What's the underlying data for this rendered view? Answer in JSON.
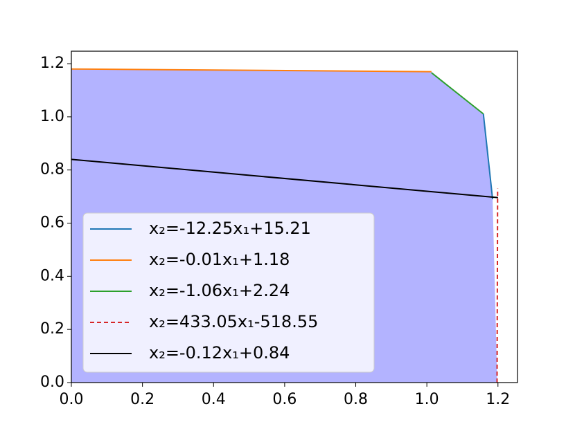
{
  "chart_data": {
    "type": "line",
    "xlim": [
      0,
      1.255
    ],
    "ylim": [
      0,
      1.247
    ],
    "xticks": [
      {
        "value": 0,
        "label": "0.0"
      },
      {
        "value": 0.2,
        "label": "0.2"
      },
      {
        "value": 0.4,
        "label": "0.4"
      },
      {
        "value": 0.6,
        "label": "0.6"
      },
      {
        "value": 0.8,
        "label": "0.8"
      },
      {
        "value": 1.0,
        "label": "1.0"
      },
      {
        "value": 1.2,
        "label": "1.2"
      }
    ],
    "yticks": [
      {
        "value": 0,
        "label": "0.0"
      },
      {
        "value": 0.2,
        "label": "0.2"
      },
      {
        "value": 0.4,
        "label": "0.4"
      },
      {
        "value": 0.6,
        "label": "0.6"
      },
      {
        "value": 0.8,
        "label": "0.8"
      },
      {
        "value": 1.0,
        "label": "1.0"
      },
      {
        "value": 1.2,
        "label": "1.2"
      }
    ],
    "fill": {
      "color": "#b3b3ff",
      "x": [
        0,
        0,
        1.013,
        1.159,
        1.185,
        1.198
      ],
      "y": [
        0,
        1.18,
        1.17,
        1.011,
        0.69,
        0
      ]
    },
    "legend": "lower left",
    "series": [
      {
        "name": "x₂=-12.25x₁+15.21",
        "color": "#1f77b4",
        "style": "solid",
        "x": [
          1.159,
          1.185
        ],
        "y": [
          1.011,
          0.69
        ]
      },
      {
        "name": "x₂=-0.01x₁+1.18",
        "color": "#ff7f0e",
        "style": "solid",
        "x": [
          0,
          1.013
        ],
        "y": [
          1.18,
          1.17
        ]
      },
      {
        "name": "x₂=-1.06x₁+2.24",
        "color": "#2ca02c",
        "style": "solid",
        "x": [
          1.013,
          1.159
        ],
        "y": [
          1.166,
          1.011
        ]
      },
      {
        "name": "x₂=433.05x₁-518.55",
        "color": "#d62728",
        "style": "dashed",
        "x": [
          1.1975,
          1.1991
        ],
        "y": [
          0,
          0.73
        ]
      },
      {
        "name": "x₂=-0.12x₁+0.84",
        "color": "#000000",
        "style": "solid",
        "x": [
          0,
          1.2
        ],
        "y": [
          0.84,
          0.696
        ]
      }
    ]
  }
}
